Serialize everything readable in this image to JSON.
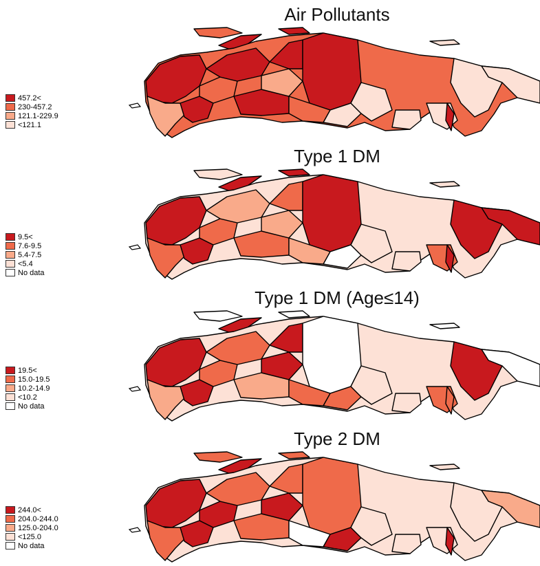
{
  "colors": {
    "c1": "#c8191e",
    "c2": "#ef6a4a",
    "c3": "#f9aa8a",
    "c4": "#fde1d6",
    "nodata": "#ffffff",
    "border": "#000000"
  },
  "panels": [
    {
      "title": "Air Pollutants",
      "legend": [
        {
          "label": "457.2<",
          "color": "#c8191e"
        },
        {
          "label": "230-457.2",
          "color": "#ef6a4a"
        },
        {
          "label": "121.1-229.9",
          "color": "#f9aa8a"
        },
        {
          "label": "<121.1",
          "color": "#fde1d6"
        }
      ]
    },
    {
      "title": "Type 1 DM",
      "legend": [
        {
          "label": "9.5<",
          "color": "#c8191e"
        },
        {
          "label": "7.6-9.5",
          "color": "#ef6a4a"
        },
        {
          "label": "5.4-7.5",
          "color": "#f9aa8a"
        },
        {
          "label": "<5.4",
          "color": "#fde1d6"
        },
        {
          "label": "No data",
          "color": "#ffffff"
        }
      ]
    },
    {
      "title": "Type 1 DM (Age≤14)",
      "legend": [
        {
          "label": "19.5<",
          "color": "#c8191e"
        },
        {
          "label": "15.0-19.5",
          "color": "#ef6a4a"
        },
        {
          "label": "10.2-14.9",
          "color": "#f9aa8a"
        },
        {
          "label": "<10.2",
          "color": "#fde1d6"
        },
        {
          "label": "No data",
          "color": "#ffffff"
        }
      ]
    },
    {
      "title": "Type 2 DM",
      "legend": [
        {
          "label": "244.0<",
          "color": "#c8191e"
        },
        {
          "label": "204.0-244.0",
          "color": "#ef6a4a"
        },
        {
          "label": "125.0-204.0",
          "color": "#f9aa8a"
        },
        {
          "label": "<125.0",
          "color": "#fde1d6"
        },
        {
          "label": "No data",
          "color": "#ffffff"
        }
      ]
    }
  ]
}
